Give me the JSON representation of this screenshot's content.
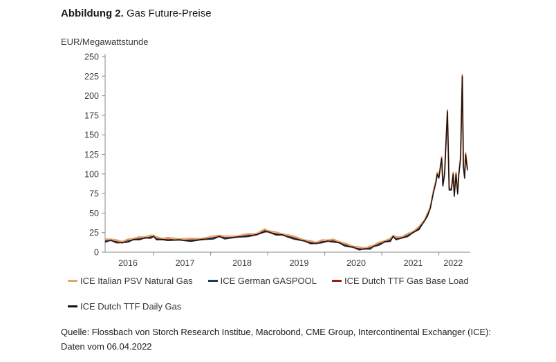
{
  "figure": {
    "title_bold": "Abbildung 2.",
    "title_rest": " Gas Future-Preise",
    "source": "Quelle: Flossbach von Storch Research Institue, Macrobond, CME Group, Intercontinental Exchanger (ICE): Daten vom 06.04.2022"
  },
  "chart_data": {
    "type": "line",
    "ylabel": "EUR/Megawattstunde",
    "ylim": [
      0,
      250
    ],
    "yticks": [
      0,
      25,
      50,
      75,
      100,
      125,
      150,
      175,
      200,
      225,
      250
    ],
    "xlim": [
      2015.9,
      2022.3
    ],
    "xticks": [
      {
        "label": "2016",
        "pos": 2016.3
      },
      {
        "label": "2017",
        "pos": 2017.3
      },
      {
        "label": "2018",
        "pos": 2018.3
      },
      {
        "label": "2019",
        "pos": 2019.3
      },
      {
        "label": "2020",
        "pos": 2020.3
      },
      {
        "label": "2021",
        "pos": 2021.3
      },
      {
        "label": "2022",
        "pos": 2022.0
      }
    ],
    "xdividers": [
      2016.75,
      2017.75,
      2018.75,
      2019.75,
      2020.75,
      2021.75
    ],
    "gridlines": false,
    "legend_position": "bottom",
    "series": [
      {
        "name": "ICE Italian PSV Natural Gas",
        "color": "#e0a86a",
        "offset": 2.0,
        "width": 2.2
      },
      {
        "name": "ICE German GASPOOL",
        "color": "#1f3b5c",
        "offset": -0.6,
        "width": 1.6
      },
      {
        "name": "ICE Dutch TTF Gas Base Load",
        "color": "#9b1b1b",
        "offset": 0.2,
        "width": 1.3
      },
      {
        "name": "ICE Dutch TTF Daily Gas",
        "color": "#111111",
        "offset": 0.0,
        "width": 1.1
      }
    ],
    "base": [
      [
        2015.9,
        14
      ],
      [
        2016.0,
        15
      ],
      [
        2016.1,
        13
      ],
      [
        2016.2,
        12
      ],
      [
        2016.3,
        14
      ],
      [
        2016.4,
        16
      ],
      [
        2016.5,
        17
      ],
      [
        2016.6,
        18
      ],
      [
        2016.7,
        19
      ],
      [
        2016.75,
        20
      ],
      [
        2016.8,
        17
      ],
      [
        2016.9,
        16
      ],
      [
        2017.0,
        16
      ],
      [
        2017.2,
        15.5
      ],
      [
        2017.4,
        15
      ],
      [
        2017.6,
        16
      ],
      [
        2017.8,
        18
      ],
      [
        2017.9,
        20
      ],
      [
        2018.0,
        18
      ],
      [
        2018.2,
        19
      ],
      [
        2018.4,
        21
      ],
      [
        2018.55,
        22
      ],
      [
        2018.7,
        27
      ],
      [
        2018.75,
        26
      ],
      [
        2018.9,
        23
      ],
      [
        2019.0,
        22
      ],
      [
        2019.2,
        18
      ],
      [
        2019.4,
        14
      ],
      [
        2019.5,
        12
      ],
      [
        2019.6,
        11
      ],
      [
        2019.7,
        13
      ],
      [
        2019.8,
        14
      ],
      [
        2019.9,
        14
      ],
      [
        2020.0,
        12
      ],
      [
        2020.1,
        9
      ],
      [
        2020.25,
        6
      ],
      [
        2020.35,
        4
      ],
      [
        2020.45,
        4
      ],
      [
        2020.55,
        5
      ],
      [
        2020.6,
        7
      ],
      [
        2020.7,
        10
      ],
      [
        2020.8,
        13
      ],
      [
        2020.9,
        15
      ],
      [
        2020.95,
        20
      ],
      [
        2021.0,
        17
      ],
      [
        2021.1,
        18
      ],
      [
        2021.2,
        21
      ],
      [
        2021.3,
        25
      ],
      [
        2021.4,
        30
      ],
      [
        2021.5,
        40
      ],
      [
        2021.55,
        47
      ],
      [
        2021.6,
        56
      ],
      [
        2021.65,
        75
      ],
      [
        2021.7,
        90
      ],
      [
        2021.72,
        100
      ],
      [
        2021.75,
        95
      ],
      [
        2021.8,
        120
      ],
      [
        2021.82,
        85
      ],
      [
        2021.85,
        100
      ],
      [
        2021.9,
        180
      ],
      [
        2021.93,
        80
      ],
      [
        2021.97,
        80
      ],
      [
        2022.0,
        100
      ],
      [
        2022.02,
        72
      ],
      [
        2022.05,
        100
      ],
      [
        2022.08,
        75
      ],
      [
        2022.1,
        100
      ],
      [
        2022.13,
        120
      ],
      [
        2022.16,
        225
      ],
      [
        2022.18,
        110
      ],
      [
        2022.2,
        95
      ],
      [
        2022.22,
        125
      ],
      [
        2022.25,
        105
      ]
    ]
  }
}
